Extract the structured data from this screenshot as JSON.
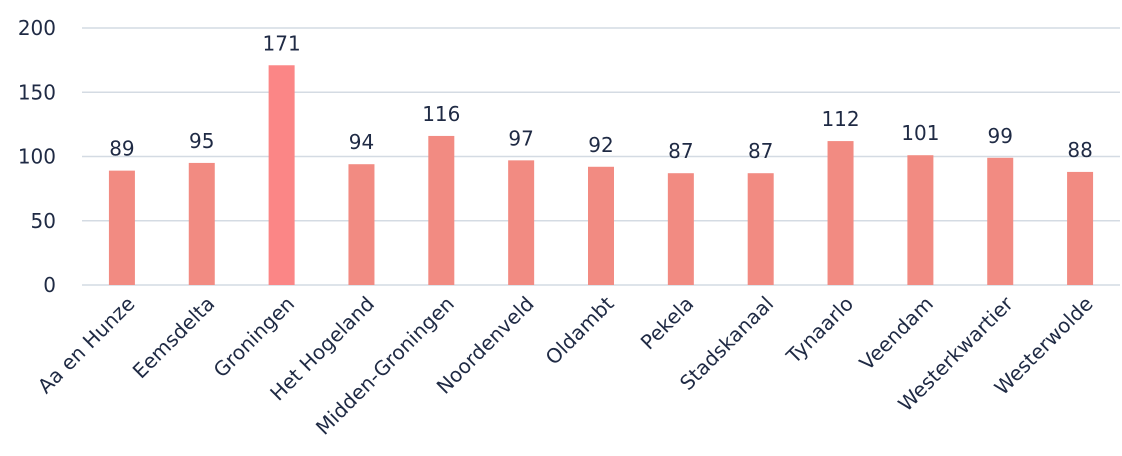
{
  "chart_data": {
    "type": "bar",
    "categories": [
      "Aa en Hunze",
      "Eemsdelta",
      "Groningen",
      "Het Hogeland",
      "Midden-Groningen",
      "Noordenveld",
      "Oldambt",
      "Pekela",
      "Stadskanaal",
      "Tynaarlo",
      "Veendam",
      "Westerkwartier",
      "Westerwolde"
    ],
    "values": [
      89,
      95,
      171,
      94,
      116,
      97,
      92,
      87,
      87,
      112,
      101,
      99,
      88
    ],
    "value_labels": [
      "89",
      "95",
      "171",
      "94",
      "116",
      "97",
      "92",
      "87",
      "87",
      "112",
      "101",
      "99",
      "88"
    ],
    "yticks": [
      0,
      50,
      100,
      150,
      200
    ],
    "ytick_labels": [
      "0",
      "50",
      "100",
      "150",
      "200"
    ],
    "ylim": [
      0,
      200
    ],
    "grid": true,
    "legend": "none",
    "title": "",
    "xlabel": "",
    "ylabel": "",
    "colors": {
      "bar": "#f28b82",
      "highlight_bar": "#fb8686",
      "grid": "#d4dbe3",
      "text": "#1f2a44"
    },
    "highlight_index": 2
  }
}
